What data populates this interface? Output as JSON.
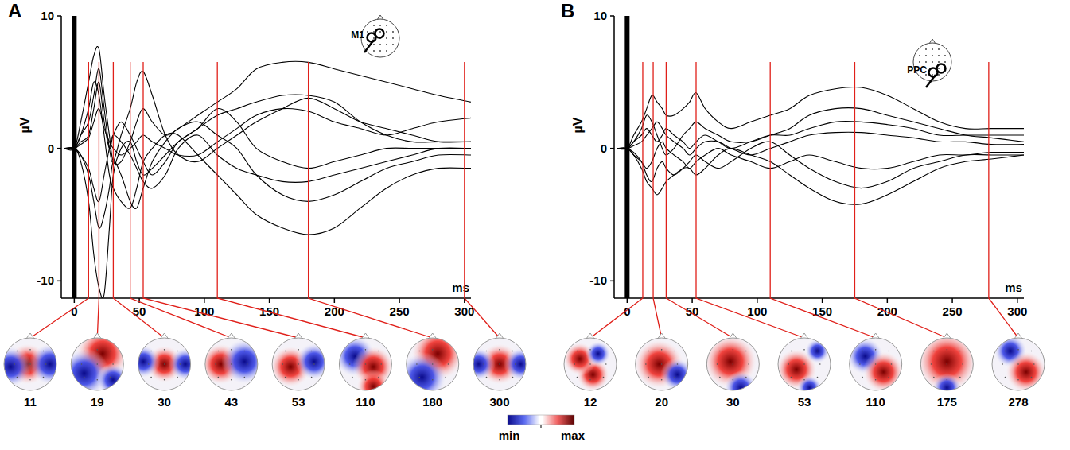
{
  "chart_data": [
    {
      "type": "line",
      "title": "A",
      "annotation": "M1",
      "xlabel": "ms",
      "ylabel": "µV",
      "xlim": [
        -10,
        305
      ],
      "ylim": [
        -11.3,
        10
      ],
      "xticks": [
        0,
        50,
        100,
        150,
        200,
        250,
        300
      ],
      "yticks": [
        -10,
        0,
        10
      ],
      "stimulus_x": 0,
      "topo_latencies": [
        11,
        19,
        30,
        43,
        53,
        110,
        180,
        300
      ],
      "x": [
        -8,
        0,
        5,
        11,
        15,
        19,
        23,
        27,
        30,
        36,
        43,
        48,
        53,
        60,
        70,
        80,
        95,
        110,
        125,
        140,
        160,
        180,
        200,
        220,
        240,
        260,
        280,
        305
      ],
      "series": [
        {
          "color": "#000000",
          "values": [
            0,
            0,
            2,
            5,
            7,
            7.5,
            4,
            1,
            -1,
            -1,
            0.5,
            2,
            3,
            2,
            1,
            1.5,
            2.5,
            3.5,
            4.5,
            6,
            6.5,
            6.5,
            6,
            5.5,
            5,
            4.5,
            4,
            3.5
          ]
        },
        {
          "color": "#000000",
          "values": [
            0,
            0,
            -1,
            -4,
            -8,
            -10.5,
            -11,
            -6,
            -2,
            0,
            0.5,
            -1,
            -2,
            -1.5,
            -0.5,
            0.5,
            1.5,
            2.5,
            3,
            3.5,
            4,
            4,
            3.5,
            2,
            1,
            0.5,
            0.5,
            0.5
          ]
        },
        {
          "color": "#000000",
          "values": [
            0,
            0,
            1,
            3,
            5,
            4,
            1,
            -2,
            -3,
            -4,
            -4.5,
            -3,
            -1,
            0,
            1,
            1,
            -0.5,
            -2,
            -3.5,
            -5,
            -6,
            -6.5,
            -6,
            -4.5,
            -3,
            -2,
            -1.5,
            -1.5
          ]
        },
        {
          "color": "#000000",
          "values": [
            0,
            0,
            1,
            2,
            4,
            6,
            3,
            0,
            -1,
            1,
            3,
            5,
            5.8,
            4,
            1,
            -0.5,
            -1,
            0,
            1,
            2,
            3,
            3.8,
            3,
            2,
            1.5,
            1,
            0.5,
            0.5
          ]
        },
        {
          "color": "#000000",
          "values": [
            0,
            0,
            -0.5,
            -2,
            -4,
            -6,
            -5,
            -3,
            -1,
            -2,
            -4,
            -4.5,
            -3,
            -1,
            0.5,
            1.5,
            2,
            1,
            0,
            -2,
            -3.5,
            -4,
            -3.5,
            -2.5,
            -1.5,
            -1,
            -0.5,
            -0.5
          ]
        },
        {
          "color": "#000000",
          "values": [
            0,
            0,
            0.5,
            1,
            3,
            5,
            2,
            0,
            1,
            2,
            1,
            0,
            -1,
            -2,
            -1,
            0.5,
            1.5,
            3,
            2,
            0,
            -1,
            -1.5,
            -1,
            -0.5,
            0,
            0,
            0,
            0
          ]
        },
        {
          "color": "#000000",
          "values": [
            0,
            0,
            -0.5,
            -1.5,
            -3,
            -4,
            -2,
            0,
            1,
            0.5,
            -0.5,
            -1.5,
            -2.5,
            -3,
            -2,
            0,
            1,
            -0.5,
            -1.5,
            -2,
            -2.5,
            -2.5,
            -2,
            -1.5,
            -1,
            -0.5,
            0,
            0
          ]
        },
        {
          "color": "#000000",
          "values": [
            0,
            0,
            0.3,
            0.8,
            2,
            3,
            1.5,
            0.5,
            0,
            -0.5,
            0,
            0.5,
            1,
            0.5,
            0,
            -0.5,
            -0.5,
            0.5,
            1.5,
            2.5,
            3,
            2.8,
            2,
            1.5,
            1,
            1.5,
            2,
            2.3
          ]
        }
      ]
    },
    {
      "type": "line",
      "title": "B",
      "annotation": "PPC",
      "xlabel": "ms",
      "ylabel": "µV",
      "xlim": [
        -10,
        305
      ],
      "ylim": [
        -11.3,
        10
      ],
      "xticks": [
        0,
        50,
        100,
        150,
        200,
        250,
        300
      ],
      "yticks": [
        -10,
        0,
        10
      ],
      "stimulus_x": 0,
      "topo_latencies": [
        12,
        20,
        30,
        53,
        110,
        175,
        278
      ],
      "x": [
        -8,
        0,
        5,
        11,
        15,
        19,
        23,
        27,
        30,
        36,
        43,
        48,
        53,
        60,
        70,
        80,
        95,
        110,
        125,
        140,
        160,
        180,
        200,
        220,
        240,
        260,
        280,
        305
      ],
      "series": [
        {
          "color": "#000000",
          "values": [
            0,
            0,
            1,
            2,
            3,
            4,
            3.5,
            3,
            2.5,
            2.5,
            3,
            3.5,
            4.2,
            3,
            2,
            1.5,
            2,
            2.5,
            3,
            4,
            4.5,
            4.6,
            4,
            3,
            2,
            1.5,
            1.5,
            1.5
          ]
        },
        {
          "color": "#000000",
          "values": [
            0,
            0,
            -0.5,
            -1.5,
            -2.5,
            -3,
            -3.5,
            -3,
            -2.5,
            -2,
            -1.5,
            -1.5,
            -2,
            -1.5,
            -0.5,
            0,
            -0.5,
            -1,
            -2,
            -3,
            -4,
            -4.2,
            -3.5,
            -2.5,
            -1.5,
            -1,
            -0.8,
            -0.5
          ]
        },
        {
          "color": "#000000",
          "values": [
            0,
            0,
            0.5,
            1.5,
            2.5,
            2,
            1,
            0,
            -0.5,
            0,
            1,
            1.5,
            2,
            1.5,
            1,
            0.5,
            0.5,
            1,
            1.5,
            2.5,
            3,
            3,
            2.5,
            2,
            1.5,
            1,
            0.8,
            0.5
          ]
        },
        {
          "color": "#000000",
          "values": [
            0,
            0,
            -0.3,
            -1,
            -2,
            -2.5,
            -1.5,
            -1,
            -1.5,
            -2,
            -1.5,
            -1,
            -0.5,
            -1,
            -1.5,
            -1,
            0,
            0.5,
            -0.5,
            -1.5,
            -2.5,
            -3,
            -2.5,
            -1.5,
            -1,
            -0.5,
            -0.5,
            -0.5
          ]
        },
        {
          "color": "#000000",
          "values": [
            0,
            0,
            0.5,
            1,
            1.5,
            1,
            0.5,
            1,
            1.5,
            1,
            0.5,
            0,
            0.5,
            1,
            0.5,
            0,
            0.5,
            1,
            1,
            1.5,
            2,
            2,
            1.8,
            1.5,
            1,
            1,
            1,
            1
          ]
        },
        {
          "color": "#000000",
          "values": [
            0,
            0,
            -0.5,
            -1,
            -1.5,
            -1,
            0,
            0.5,
            0,
            -0.5,
            -1,
            -1.5,
            -1,
            -0.5,
            0,
            -0.5,
            -1,
            -1.5,
            -1,
            -0.5,
            -1,
            -1.5,
            -1.5,
            -1,
            -0.5,
            -0.5,
            -0.3,
            -0.3
          ]
        },
        {
          "color": "#000000",
          "values": [
            0,
            0,
            0.2,
            0.5,
            1,
            1.5,
            2,
            1.5,
            1,
            0.5,
            0,
            -0.5,
            0,
            0.5,
            0.5,
            0,
            -0.5,
            0,
            0.5,
            1,
            1.2,
            1.2,
            1,
            0.8,
            0.5,
            0.5,
            0.3,
            0.3
          ]
        }
      ]
    }
  ],
  "colorbar": {
    "labels": [
      "min",
      "max"
    ]
  }
}
